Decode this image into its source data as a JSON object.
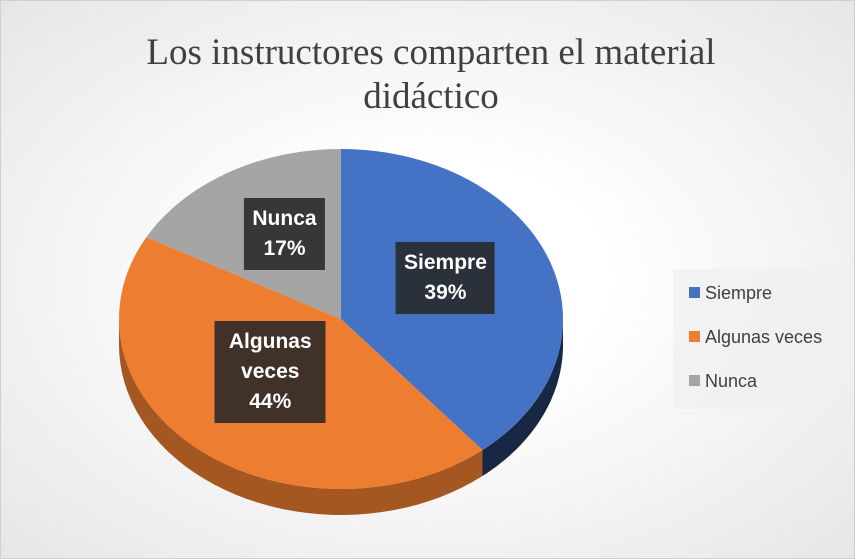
{
  "chart_data": {
    "type": "pie",
    "title": "Los instructores comparten el material didáctico",
    "categories": [
      "Siempre",
      "Algunas veces",
      "Nunca"
    ],
    "values": [
      39,
      44,
      17
    ],
    "value_labels": [
      "39%",
      "44%",
      "17%"
    ],
    "colors": [
      "#4472c4",
      "#ed7d31",
      "#a5a5a5"
    ],
    "legend": "right"
  }
}
